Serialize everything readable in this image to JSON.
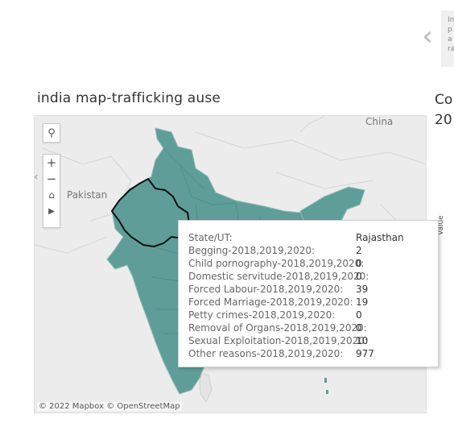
{
  "header": {
    "caption_lines": [
      "In",
      "p",
      "a",
      "ra"
    ],
    "prev_arrow": "‹"
  },
  "map": {
    "title": "india map-trafficking ause",
    "next_title": "Co\n20",
    "labels": {
      "china": "China",
      "pakistan": "Pakistan"
    },
    "attribution": "© 2022 Mapbox  © OpenStreetMap",
    "colors": {
      "state_fill": "#5f9e98",
      "background": "#ececec",
      "highlight_stroke": "#111111"
    }
  },
  "axis": {
    "label": "Value"
  },
  "tooltip": {
    "rows": [
      {
        "key": "State/UT:",
        "value": "Rajasthan"
      },
      {
        "key": "Begging-2018,2019,2020:",
        "value": "2"
      },
      {
        "key": "Child pornography-2018,2019,2020:",
        "value": "0"
      },
      {
        "key": "Domestic servitude-2018,2019,2020:",
        "value": "0"
      },
      {
        "key": "Forced Labour-2018,2019,2020:",
        "value": "39"
      },
      {
        "key": "Forced Marriage-2018,2019,2020:",
        "value": "19"
      },
      {
        "key": "Petty crimes-2018,2019,2020:",
        "value": "0"
      },
      {
        "key": "Removal of Organs-2018,2019,2020:",
        "value": "0"
      },
      {
        "key": "Sexual Exploitation-2018,2019,2020:",
        "value": "10"
      },
      {
        "key": "Other reasons-2018,2019,2020:",
        "value": "977"
      }
    ]
  }
}
